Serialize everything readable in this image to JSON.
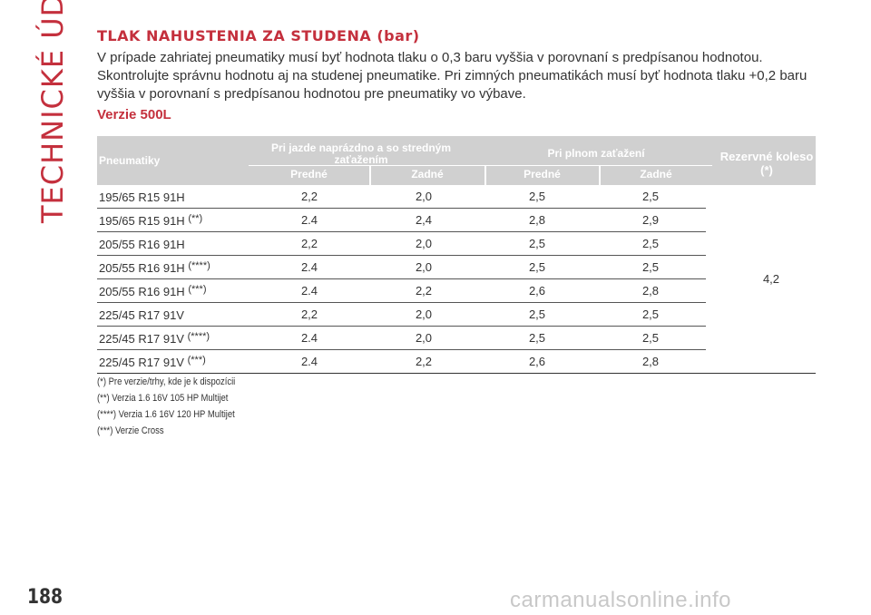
{
  "side_title": "TECHNICKÉ ÚDAJE",
  "section_title": "TLAK NAHUSTENIA ZA STUDENA (bar)",
  "intro": "V prípade zahriatej pneumatiky musí byť hodnota tlaku o 0,3 baru vyššia v porovnaní s predpísanou hodnotou. Skontrolujte správnu hodnotu aj na studenej pneumatike. Pri zimných pneumatikách musí byť hodnota tlaku +0,2 baru vyššia v porovnaní s predpísanou hodnotou pre pneumatiky vo výbave.",
  "subsection": "Verzie 500L",
  "table": {
    "headers": {
      "tires": "Pneumatiky",
      "empty_load": "Pri jazde naprázdno a so stredným zaťažením",
      "full_load": "Pri plnom zaťažení",
      "spare": "Rezervné koleso (*)",
      "front": "Predné",
      "rear": "Zadné"
    },
    "rows": [
      {
        "tire": "195/65 R15 91H",
        "sup": "",
        "v1": "2,2",
        "v2": "2,0",
        "v3": "2,5",
        "v4": "2,5"
      },
      {
        "tire": "195/65 R15 91H",
        "sup": "(**)",
        "v1": "2.4",
        "v2": "2,4",
        "v3": "2,8",
        "v4": "2,9"
      },
      {
        "tire": "205/55 R16 91H",
        "sup": "",
        "v1": "2,2",
        "v2": "2,0",
        "v3": "2,5",
        "v4": "2,5"
      },
      {
        "tire": "205/55 R16 91H",
        "sup": "(****)",
        "v1": "2.4",
        "v2": "2,0",
        "v3": "2,5",
        "v4": "2,5"
      },
      {
        "tire": "205/55 R16 91H",
        "sup": "(***)",
        "v1": "2.4",
        "v2": "2,2",
        "v3": "2,6",
        "v4": "2,8"
      },
      {
        "tire": "225/45 R17 91V",
        "sup": "",
        "v1": "2,2",
        "v2": "2,0",
        "v3": "2,5",
        "v4": "2,5"
      },
      {
        "tire": "225/45 R17 91V",
        "sup": "(****)",
        "v1": "2.4",
        "v2": "2,0",
        "v3": "2,5",
        "v4": "2,5"
      },
      {
        "tire": "225/45 R17 91V",
        "sup": "(***)",
        "v1": "2.4",
        "v2": "2,2",
        "v3": "2,6",
        "v4": "2,8"
      }
    ],
    "spare_value": "4,2"
  },
  "footnotes": [
    "(*) Pre verzie/trhy, kde je k dispozícii",
    "(**) Verzia 1.6 16V 105 HP Multijet",
    "(****) Verzia 1.6 16V 120 HP Multijet",
    "(***) Verzie Cross"
  ],
  "page_number": "188",
  "watermark": "carmanualsonline.info",
  "colors": {
    "accent": "#c4303d",
    "header_bg": "#d0d0d0",
    "text": "#333333"
  }
}
